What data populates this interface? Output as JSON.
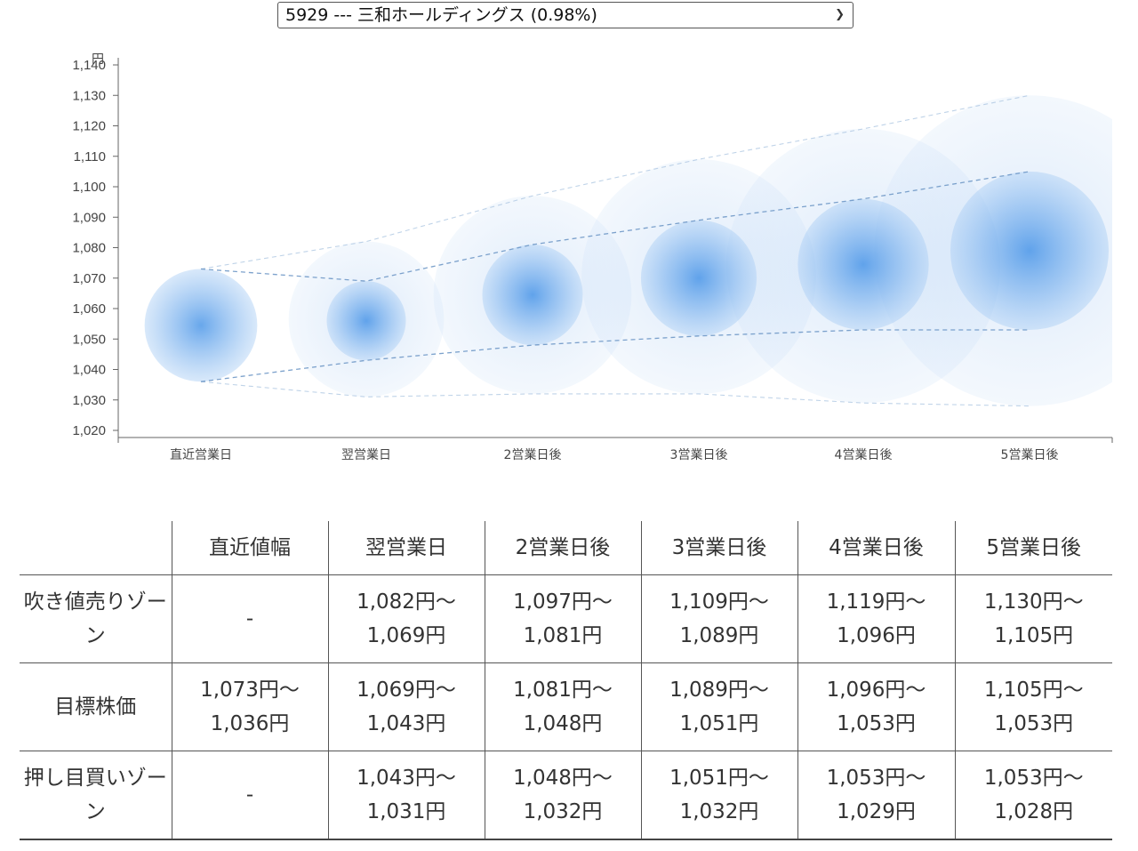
{
  "selector": {
    "label": "5929 --- 三和ホールディングス (0.98%)"
  },
  "chart_data": {
    "type": "bubble-range",
    "y_unit": "円",
    "ylim": [
      1020,
      1140
    ],
    "yticks": [
      1020,
      1030,
      1040,
      1050,
      1060,
      1070,
      1080,
      1090,
      1100,
      1110,
      1120,
      1130,
      1140
    ],
    "ytick_labels": [
      "1,020",
      "1,030",
      "1,040",
      "1,050",
      "1,060",
      "1,070",
      "1,080",
      "1,090",
      "1,100",
      "1,110",
      "1,120",
      "1,130",
      "1,140"
    ],
    "categories": [
      "直近営業日",
      "翌営業日",
      "2営業日後",
      "3営業日後",
      "4営業日後",
      "5営業日後"
    ],
    "target_center": [
      1054.5,
      1056,
      1064.5,
      1070,
      1074.5,
      1079
    ],
    "target_high": [
      1073,
      1069,
      1081,
      1089,
      1096,
      1105
    ],
    "target_low": [
      1036,
      1043,
      1048,
      1051,
      1053,
      1053
    ],
    "outer_high": [
      1073,
      1082,
      1097,
      1109,
      1119,
      1130
    ],
    "outer_low": [
      1036,
      1031,
      1032,
      1032,
      1029,
      1028
    ],
    "colors": {
      "bubble": "#3d8ee6",
      "line": "#8fb2d6",
      "axis": "#666666"
    }
  },
  "table": {
    "headers": [
      "",
      "直近値幅",
      "翌営業日",
      "2営業日後",
      "3営業日後",
      "4営業日後",
      "5営業日後"
    ],
    "rows": [
      {
        "label": "吹き値売りゾーン",
        "cells": [
          [
            "-"
          ],
          [
            "1,082円〜",
            "1,069円"
          ],
          [
            "1,097円〜",
            "1,081円"
          ],
          [
            "1,109円〜",
            "1,089円"
          ],
          [
            "1,119円〜",
            "1,096円"
          ],
          [
            "1,130円〜",
            "1,105円"
          ]
        ]
      },
      {
        "label": "目標株価",
        "cells": [
          [
            "1,073円〜",
            "1,036円"
          ],
          [
            "1,069円〜",
            "1,043円"
          ],
          [
            "1,081円〜",
            "1,048円"
          ],
          [
            "1,089円〜",
            "1,051円"
          ],
          [
            "1,096円〜",
            "1,053円"
          ],
          [
            "1,105円〜",
            "1,053円"
          ]
        ]
      },
      {
        "label": "押し目買いゾーン",
        "cells": [
          [
            "-"
          ],
          [
            "1,043円〜",
            "1,031円"
          ],
          [
            "1,048円〜",
            "1,032円"
          ],
          [
            "1,051円〜",
            "1,032円"
          ],
          [
            "1,053円〜",
            "1,029円"
          ],
          [
            "1,053円〜",
            "1,028円"
          ]
        ]
      }
    ]
  }
}
